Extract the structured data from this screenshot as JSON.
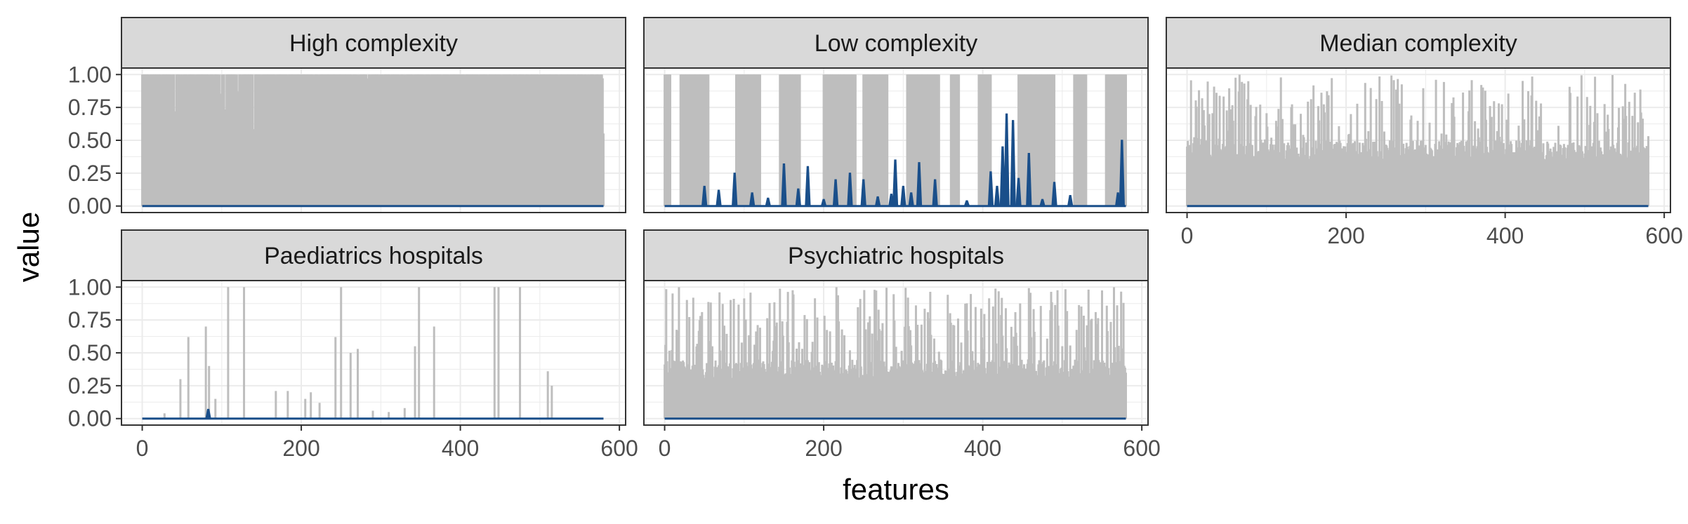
{
  "chart_data": {
    "type": "line",
    "layout": "facet-wrap",
    "xlabel": "features",
    "ylabel": "value",
    "xlim": [
      0,
      580
    ],
    "ylim": [
      0,
      1
    ],
    "x_ticks": [
      "0",
      "200",
      "400",
      "600"
    ],
    "x_tick_values": [
      0,
      200,
      400,
      600
    ],
    "y_ticks": [
      "0.00",
      "0.25",
      "0.50",
      "0.75",
      "1.00"
    ],
    "y_tick_values": [
      0,
      0.25,
      0.5,
      0.75,
      1
    ],
    "grid": true,
    "colors": {
      "upper": "#bebebe",
      "lower": "#1a4f8a",
      "strip_bg": "#d9d9d9"
    },
    "panels": [
      {
        "title": "High complexity",
        "upper_peaks": [],
        "upper_profile": {
          "type": "dense",
          "base": 1.0,
          "min": 0.55,
          "drop_fraction": 0.12
        },
        "lower_peaks": []
      },
      {
        "title": "Low complexity",
        "upper_profile": {
          "type": "blocks",
          "blocks": [
            [
              0,
              7
            ],
            [
              20,
              55
            ],
            [
              90,
              120
            ],
            [
              145,
              170
            ],
            [
              200,
              240
            ],
            [
              250,
              280
            ],
            [
              305,
              345
            ],
            [
              360,
              370
            ],
            [
              395,
              410
            ],
            [
              445,
              490
            ],
            [
              515,
              530
            ],
            [
              555,
              580
            ]
          ],
          "gap_level": 0.0
        },
        "upper_peaks": [],
        "lower_peaks": [
          [
            50,
            0.15
          ],
          [
            68,
            0.12
          ],
          [
            88,
            0.25
          ],
          [
            110,
            0.1
          ],
          [
            130,
            0.06
          ],
          [
            150,
            0.32
          ],
          [
            168,
            0.13
          ],
          [
            180,
            0.3
          ],
          [
            200,
            0.05
          ],
          [
            215,
            0.2
          ],
          [
            233,
            0.25
          ],
          [
            250,
            0.2
          ],
          [
            268,
            0.07
          ],
          [
            285,
            0.09
          ],
          [
            290,
            0.35
          ],
          [
            300,
            0.15
          ],
          [
            310,
            0.1
          ],
          [
            320,
            0.33
          ],
          [
            340,
            0.2
          ],
          [
            380,
            0.04
          ],
          [
            410,
            0.26
          ],
          [
            418,
            0.15
          ],
          [
            425,
            0.45
          ],
          [
            430,
            0.7
          ],
          [
            438,
            0.65
          ],
          [
            445,
            0.21
          ],
          [
            458,
            0.4
          ],
          [
            475,
            0.05
          ],
          [
            490,
            0.18
          ],
          [
            510,
            0.08
          ],
          [
            575,
            0.5
          ],
          [
            570,
            0.1
          ]
        ]
      },
      {
        "title": "Median complexity",
        "upper_profile": {
          "type": "dense",
          "base": 0.5,
          "min": 0.35,
          "peak_fraction": 0.25
        },
        "upper_peaks": [],
        "lower_peaks": []
      },
      {
        "title": "Paediatrics hospitals",
        "upper_profile": {
          "type": "sparse"
        },
        "upper_peaks": [
          [
            28,
            0.04
          ],
          [
            48,
            0.3
          ],
          [
            58,
            0.62
          ],
          [
            80,
            0.7
          ],
          [
            84,
            0.4
          ],
          [
            92,
            0.15
          ],
          [
            108,
            1.0
          ],
          [
            128,
            1.0
          ],
          [
            168,
            0.21
          ],
          [
            183,
            0.21
          ],
          [
            205,
            0.15
          ],
          [
            212,
            0.2
          ],
          [
            223,
            0.12
          ],
          [
            243,
            0.62
          ],
          [
            250,
            1.0
          ],
          [
            262,
            0.5
          ],
          [
            271,
            0.53
          ],
          [
            290,
            0.06
          ],
          [
            310,
            0.05
          ],
          [
            330,
            0.08
          ],
          [
            343,
            0.55
          ],
          [
            348,
            1.0
          ],
          [
            367,
            0.7
          ],
          [
            443,
            1.0
          ],
          [
            448,
            1.0
          ],
          [
            475,
            1.0
          ],
          [
            510,
            0.36
          ],
          [
            515,
            0.25
          ]
        ],
        "lower_peaks": [
          [
            83,
            0.07
          ]
        ]
      },
      {
        "title": "Psychiatric hospitals",
        "upper_profile": {
          "type": "dense",
          "base": 0.45,
          "min": 0.3,
          "peak_fraction": 0.28
        },
        "upper_peaks": [],
        "lower_peaks": []
      }
    ]
  }
}
